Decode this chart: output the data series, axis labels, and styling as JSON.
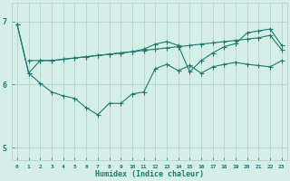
{
  "xlabel": "Humidex (Indice chaleur)",
  "ylabel": "",
  "xlim": [
    -0.5,
    23.5
  ],
  "ylim": [
    4.8,
    7.3
  ],
  "yticks": [
    5,
    6,
    7
  ],
  "xticks": [
    0,
    1,
    2,
    3,
    4,
    5,
    6,
    7,
    8,
    9,
    10,
    11,
    12,
    13,
    14,
    15,
    16,
    17,
    18,
    19,
    20,
    21,
    22,
    23
  ],
  "bg_color": "#d6eee8",
  "grid_color": "#b0cec8",
  "line_color": "#1a7a6e",
  "line1_x": [
    0,
    1,
    2,
    3,
    4,
    5,
    6,
    7,
    8,
    9,
    10,
    11,
    12,
    13,
    14,
    15,
    16,
    17,
    18,
    19,
    20,
    21,
    22,
    23
  ],
  "line1_y": [
    6.95,
    6.18,
    6.02,
    5.88,
    5.82,
    5.78,
    5.63,
    5.52,
    5.7,
    5.7,
    5.85,
    5.88,
    6.25,
    6.32,
    6.22,
    6.3,
    6.18,
    6.28,
    6.32,
    6.35,
    6.32,
    6.3,
    6.28,
    6.38
  ],
  "line2_x": [
    0,
    1,
    2,
    3,
    4,
    5,
    6,
    7,
    8,
    9,
    10,
    11,
    12,
    13,
    14,
    15,
    16,
    17,
    18,
    19,
    20,
    21,
    22,
    23
  ],
  "line2_y": [
    6.95,
    6.18,
    6.38,
    6.38,
    6.4,
    6.42,
    6.44,
    6.46,
    6.48,
    6.5,
    6.52,
    6.54,
    6.56,
    6.58,
    6.6,
    6.62,
    6.64,
    6.66,
    6.68,
    6.7,
    6.72,
    6.74,
    6.78,
    6.55
  ],
  "line3_x": [
    1,
    2,
    3,
    4,
    5,
    6,
    7,
    8,
    9,
    10,
    11,
    12,
    13,
    14,
    15,
    16,
    17,
    18,
    19,
    20,
    21,
    22,
    23
  ],
  "line3_y": [
    6.38,
    6.38,
    6.38,
    6.4,
    6.42,
    6.44,
    6.46,
    6.48,
    6.5,
    6.52,
    6.56,
    6.64,
    6.68,
    6.62,
    6.2,
    6.38,
    6.5,
    6.6,
    6.65,
    6.82,
    6.85,
    6.88,
    6.62
  ]
}
